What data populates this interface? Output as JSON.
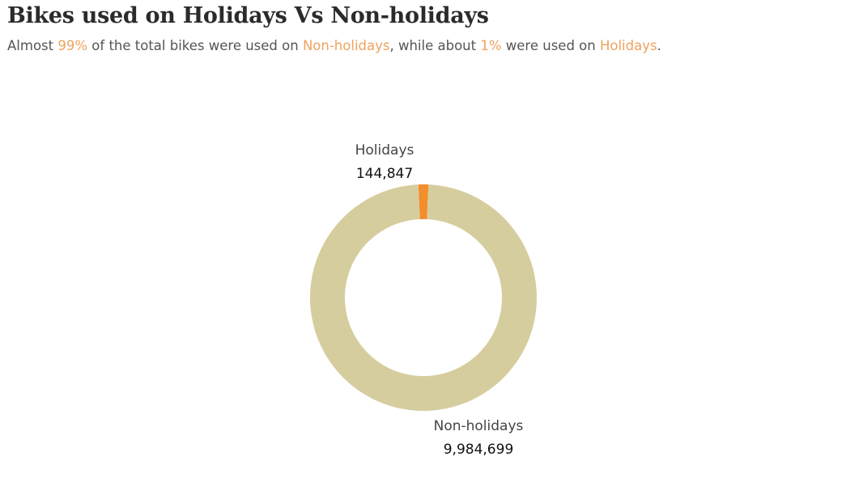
{
  "title": "Bikes used on Holidays Vs Non-holidays",
  "subtitle": {
    "t1": "Almost ",
    "pct_non_holidays": "99%",
    "t2": " of the total bikes were used on ",
    "non_holidays": "Non-holidays",
    "t3": ", while about ",
    "pct_holidays": "1%",
    "t4": " were used on ",
    "holidays": "Holidays",
    "t5": "."
  },
  "colors": {
    "title": "#2b2b2b",
    "subtitle_text": "#555555",
    "highlight": "#f0a35e",
    "holidays_slice": "#f28e2b",
    "non_holidays_slice": "#d6cd9f"
  },
  "chart_data": {
    "type": "pie",
    "style": "donut",
    "categories": [
      "Holidays",
      "Non-holidays"
    ],
    "values": [
      144847,
      9984699
    ],
    "value_labels": [
      "144,847",
      "9,984,699"
    ],
    "colors": [
      "#f28e2b",
      "#d6cd9f"
    ]
  }
}
